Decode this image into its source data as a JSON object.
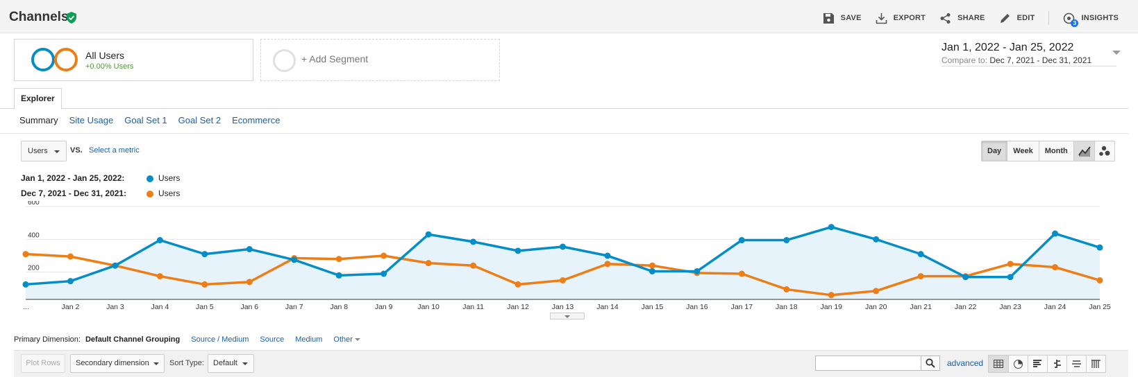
{
  "header": {
    "title": "Channels",
    "verified_icon": "shield-check-icon",
    "actions": {
      "save": "SAVE",
      "export": "EXPORT",
      "share": "SHARE",
      "edit": "EDIT",
      "insights": "INSIGHTS",
      "insights_badge": "3"
    }
  },
  "segments": {
    "active": {
      "name": "All Users",
      "sub": "+0.00% Users"
    },
    "add_label": "+ Add Segment"
  },
  "daterange": {
    "main": "Jan 1, 2022 - Jan 25, 2022",
    "compare_label": "Compare to:",
    "compare_value": "Dec 7, 2021 - Dec 31, 2021"
  },
  "tabs": {
    "explorer": "Explorer"
  },
  "subtabs": [
    "Summary",
    "Site Usage",
    "Goal Set 1",
    "Goal Set 2",
    "Ecommerce"
  ],
  "metric": {
    "selected": "Users",
    "vs": "VS.",
    "select_metric": "Select a metric"
  },
  "granularity": {
    "day": "Day",
    "week": "Week",
    "month": "Month",
    "active": "Day"
  },
  "legend": [
    {
      "range": "Jan 1, 2022 - Jan 25, 2022:",
      "metric": "Users",
      "color": "#058dc7"
    },
    {
      "range": "Dec 7, 2021 - Dec 31, 2021:",
      "metric": "Users",
      "color": "#ed7e17"
    }
  ],
  "chart_data": {
    "type": "line",
    "x": [
      "...",
      "Jan 2",
      "Jan 3",
      "Jan 4",
      "Jan 5",
      "Jan 6",
      "Jan 7",
      "Jan 8",
      "Jan 9",
      "Jan 10",
      "Jan 11",
      "Jan 12",
      "Jan 13",
      "Jan 14",
      "Jan 15",
      "Jan 16",
      "Jan 17",
      "Jan 18",
      "Jan 19",
      "Jan 20",
      "Jan 21",
      "Jan 22",
      "Jan 23",
      "Jan 24",
      "Jan 25"
    ],
    "y_ticks": [
      200,
      400,
      600
    ],
    "ylim": [
      0,
      600
    ],
    "grid": true,
    "series": [
      {
        "name": "Users",
        "color": "#058dc7",
        "area": true,
        "values": [
          125,
          145,
          240,
          395,
          310,
          340,
          275,
          180,
          190,
          430,
          385,
          330,
          355,
          300,
          205,
          205,
          395,
          395,
          475,
          400,
          310,
          170,
          170,
          435,
          350
        ]
      },
      {
        "name": "Users",
        "color": "#ed7e17",
        "area": false,
        "values": [
          310,
          295,
          240,
          175,
          125,
          140,
          285,
          280,
          300,
          255,
          240,
          125,
          150,
          250,
          240,
          195,
          190,
          95,
          60,
          85,
          175,
          175,
          250,
          230,
          150
        ]
      }
    ]
  },
  "primary_dimension": {
    "label": "Primary Dimension:",
    "current": "Default Channel Grouping",
    "options": [
      "Source / Medium",
      "Source",
      "Medium"
    ],
    "other": "Other"
  },
  "table_toolbar": {
    "plot_rows": "Plot Rows",
    "secondary_dimension": "Secondary dimension",
    "sort_type_label": "Sort Type:",
    "sort_type_value": "Default",
    "search_placeholder": "",
    "advanced": "advanced"
  }
}
